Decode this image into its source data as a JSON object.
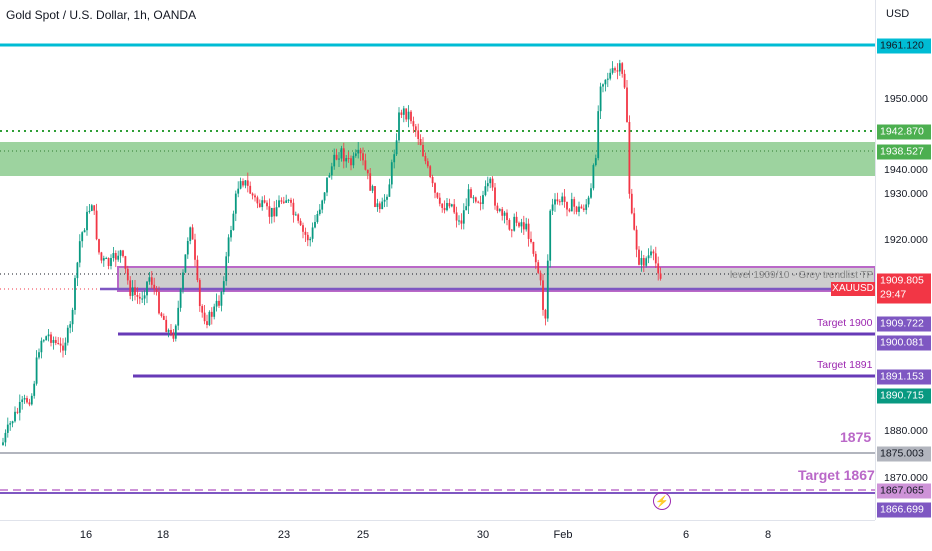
{
  "header": {
    "title": "Gold Spot / U.S. Dollar, 1h, OANDA",
    "currency": "USD"
  },
  "price_axis": {
    "ticks": [
      "1950.000",
      "1940.000",
      "1930.000",
      "1920.000",
      "1880.000",
      "1870.000"
    ],
    "tags": [
      {
        "label": "1961.120",
        "color": "#00bcd4",
        "text_color": "#131722"
      },
      {
        "label": "1942.870",
        "color": "#4caf50",
        "text_color": "#ffffff"
      },
      {
        "label": "1938.527",
        "color": "#4caf50",
        "text_color": "#ffffff"
      },
      {
        "label": "1909.805",
        "sub": "29:47",
        "color": "#f23645",
        "text_color": "#ffffff"
      },
      {
        "label": "1909.722",
        "color": "#7e57c2",
        "text_color": "#ffffff"
      },
      {
        "label": "1900.081",
        "color": "#7e57c2",
        "text_color": "#ffffff"
      },
      {
        "label": "1891.153",
        "color": "#7e57c2",
        "text_color": "#ffffff"
      },
      {
        "label": "1890.715",
        "color": "#089981",
        "text_color": "#ffffff"
      },
      {
        "label": "1875.003",
        "color": "#b2b5be",
        "text_color": "#131722"
      },
      {
        "label": "1867.065",
        "color": "#ce93d8",
        "text_color": "#131722"
      },
      {
        "label": "1866.699",
        "color": "#7e57c2",
        "text_color": "#ffffff"
      }
    ]
  },
  "time_axis": {
    "labels": [
      "16",
      "18",
      "23",
      "25",
      "30",
      "Feb",
      "6",
      "8"
    ]
  },
  "annotations": {
    "grey_zone_text": "level 1909/10 - Grey trendlist TP",
    "symbol_tag": "XAUUSD",
    "target_1900": "Target 1900",
    "target_1891": "Target 1891",
    "level_1875": "1875",
    "target_1867": "Target 1867",
    "lightning": "⚡"
  },
  "colors": {
    "bull": "#089981",
    "bear": "#f23645",
    "resistance": "#00bcd4",
    "green_zone": "#4caf50",
    "grey_zone": "#9e9e9e",
    "target_line": "#7e57c2",
    "target_1867_line": "#ce93d8"
  }
}
